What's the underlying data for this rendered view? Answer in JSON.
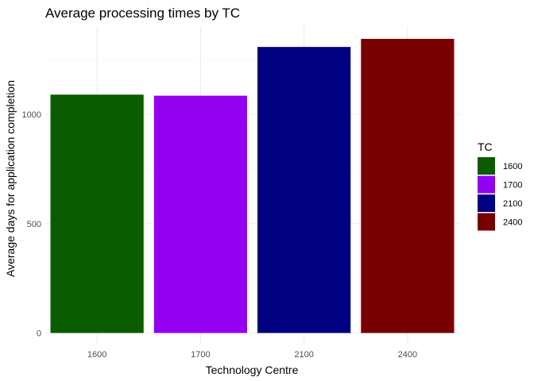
{
  "chart_data": {
    "type": "bar",
    "title": "Average processing times by TC",
    "xlabel": "Technology Centre",
    "ylabel": "Average days for application completion",
    "categories": [
      "1600",
      "1700",
      "2100",
      "2400"
    ],
    "values": [
      1090,
      1085,
      1308,
      1345
    ],
    "colors": [
      "#0a5c00",
      "#9400f0",
      "#000080",
      "#780000"
    ],
    "ylim": [
      0,
      1400
    ],
    "yticks": [
      0,
      500,
      1000
    ],
    "grid": true,
    "legend": {
      "title": "TC",
      "position": "right",
      "entries": [
        "1600",
        "1700",
        "2100",
        "2400"
      ]
    }
  }
}
